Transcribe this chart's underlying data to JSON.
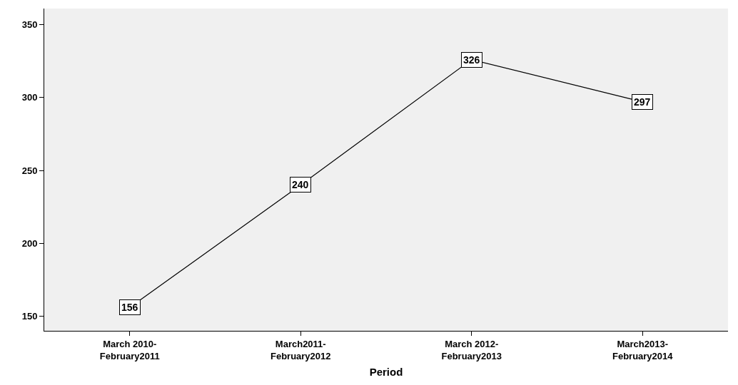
{
  "chart_data": {
    "type": "line",
    "xlabel": "Period",
    "categories": [
      "March 2010-\nFebruary2011",
      "March2011-\nFebruary2012",
      "March 2012-\nFebruary2013",
      "March2013-\nFebruary2014"
    ],
    "values": [
      156,
      240,
      326,
      297
    ],
    "color": "#000000",
    "ylim": [
      140,
      361
    ],
    "yticks": [
      150,
      200,
      250,
      300,
      350
    ],
    "grid": false,
    "marker": "square",
    "data_labels": true,
    "line_style": "solid"
  }
}
